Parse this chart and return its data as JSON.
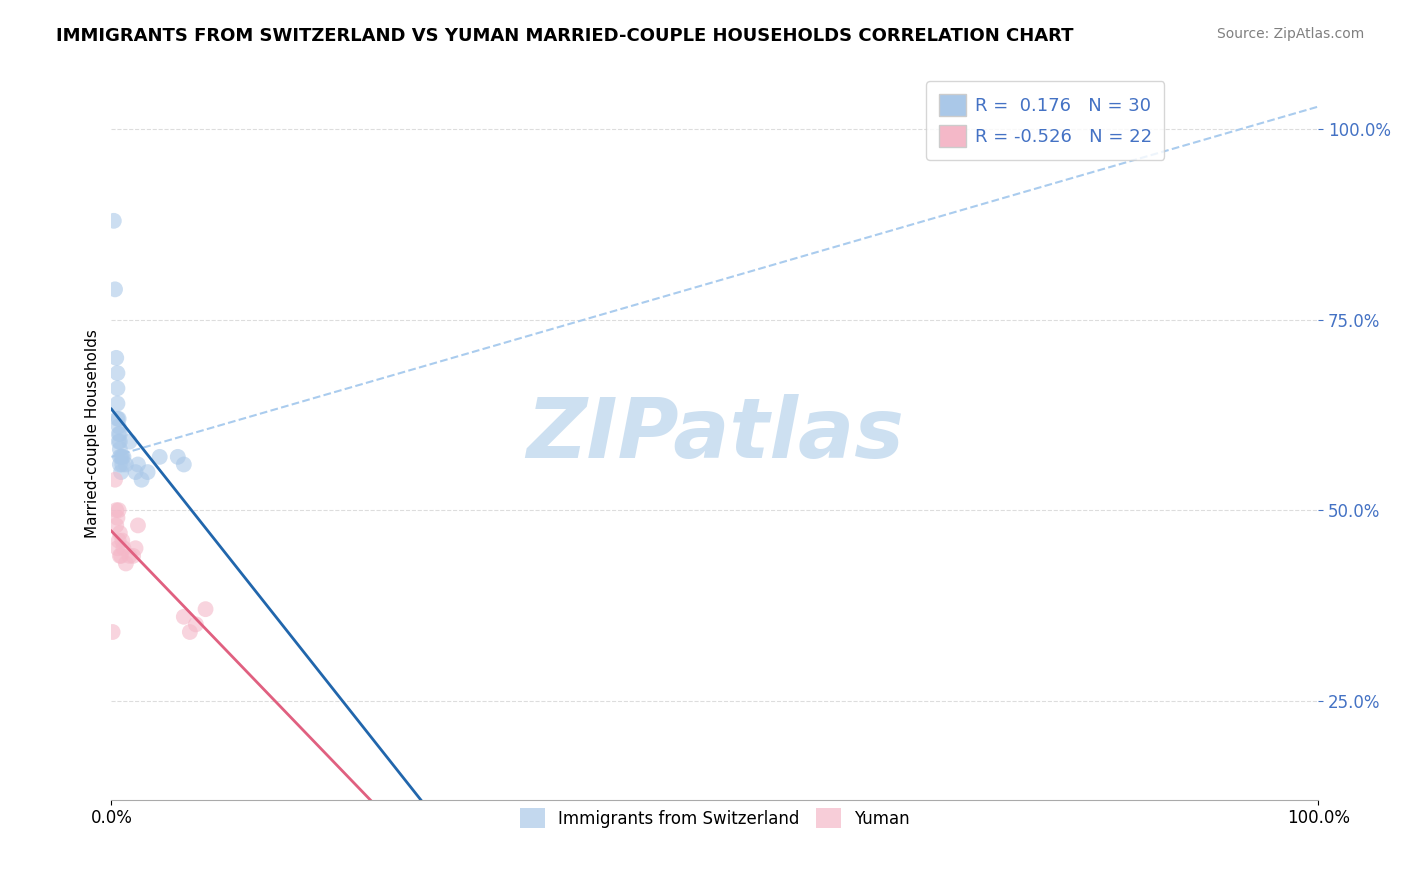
{
  "title": "IMMIGRANTS FROM SWITZERLAND VS YUMAN MARRIED-COUPLE HOUSEHOLDS CORRELATION CHART",
  "source": "Source: ZipAtlas.com",
  "ylabel": "Married-couple Households",
  "legend_label1": "Immigrants from Switzerland",
  "legend_label2": "Yuman",
  "r1": 0.176,
  "n1": 30,
  "r2": -0.526,
  "n2": 22,
  "blue_scatter_x": [
    0.002,
    0.003,
    0.004,
    0.005,
    0.005,
    0.005,
    0.005,
    0.006,
    0.006,
    0.006,
    0.006,
    0.007,
    0.007,
    0.007,
    0.007,
    0.007,
    0.008,
    0.008,
    0.009,
    0.009,
    0.01,
    0.012,
    0.015,
    0.02,
    0.022,
    0.025,
    0.03,
    0.04,
    0.055,
    0.06
  ],
  "blue_scatter_y": [
    0.88,
    0.79,
    0.7,
    0.68,
    0.66,
    0.64,
    0.62,
    0.62,
    0.61,
    0.6,
    0.59,
    0.6,
    0.59,
    0.58,
    0.57,
    0.56,
    0.57,
    0.55,
    0.57,
    0.56,
    0.57,
    0.56,
    0.59,
    0.55,
    0.56,
    0.54,
    0.55,
    0.57,
    0.57,
    0.56
  ],
  "pink_scatter_x": [
    0.001,
    0.003,
    0.004,
    0.004,
    0.005,
    0.005,
    0.006,
    0.006,
    0.007,
    0.007,
    0.008,
    0.009,
    0.01,
    0.012,
    0.015,
    0.018,
    0.02,
    0.022,
    0.06,
    0.065,
    0.07,
    0.078
  ],
  "pink_scatter_y": [
    0.34,
    0.54,
    0.5,
    0.48,
    0.49,
    0.45,
    0.5,
    0.46,
    0.47,
    0.44,
    0.44,
    0.46,
    0.45,
    0.43,
    0.44,
    0.44,
    0.45,
    0.48,
    0.36,
    0.34,
    0.35,
    0.37
  ],
  "xlim": [
    0.0,
    1.0
  ],
  "ylim": [
    0.12,
    1.08
  ],
  "yticks": [
    0.25,
    0.5,
    0.75,
    1.0
  ],
  "ytick_labels": [
    "25.0%",
    "50.0%",
    "75.0%",
    "100.0%"
  ],
  "xtick_positions": [
    0.0,
    1.0
  ],
  "xtick_labels": [
    "0.0%",
    "100.0%"
  ],
  "background_color": "#ffffff",
  "blue_color": "#aac8e8",
  "blue_line_color": "#2166ac",
  "pink_color": "#f4b8c8",
  "pink_line_color": "#e06080",
  "diag_line_color": "#aaccee",
  "grid_color": "#dddddd",
  "tick_color": "#4472c4",
  "watermark_text": "ZIPatlas",
  "watermark_color": "#c8ddf0",
  "title_fontsize": 13,
  "source_fontsize": 10,
  "tick_fontsize": 12,
  "legend_fontsize": 13,
  "ylabel_fontsize": 11
}
